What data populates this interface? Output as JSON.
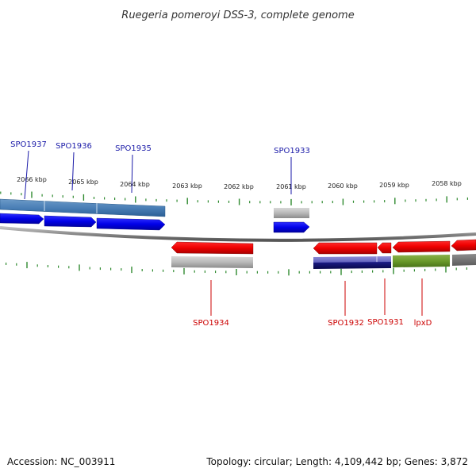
{
  "title": "Ruegeria pomeroyi DSS-3, complete genome",
  "footer": {
    "accession": "Accession: NC_003911",
    "summary": "Topology: circular; Length: 4,109,442 bp; Genes: 3,872"
  },
  "colors": {
    "forward_label": "#1a1aa8",
    "reverse_label": "#cc0000",
    "tick": "#2f8a2f",
    "backbone": "#8a8a8a"
  },
  "scale_labels": [
    "2066 kbp",
    "2065 kbp",
    "2064 kbp",
    "2063 kbp",
    "2062 kbp",
    "2061 kbp",
    "2060 kbp",
    "2059 kbp",
    "2058 kbp"
  ],
  "forward_genes": [
    "SPO1937",
    "SPO1936",
    "SPO1935",
    "SPO1933"
  ],
  "reverse_genes": [
    "SPO1934",
    "SPO1932",
    "SPO1931",
    "lpxD"
  ]
}
